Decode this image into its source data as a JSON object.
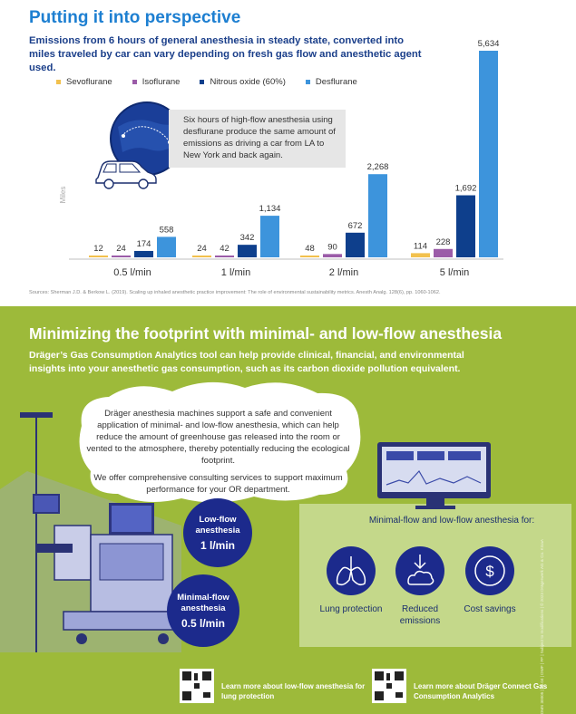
{
  "top": {
    "title": "Putting it into perspective",
    "subtitle": "Emissions from 6 hours of general anesthesia in steady state, converted into miles traveled by car can vary depending on fresh gas flow and anesthetic agent used.",
    "callout": "Six hours of high-flow anesthesia using desflurane produce the same amount of emissions as driving a car from LA to New York and back again.",
    "sources": "Sources: Sherman J.D. & Berkow L. (2019). Scaling up inhaled anesthetic practice improvement: The role of environmental sustainability metrics. Anesth Analg. 128(6), pp. 1060-1062."
  },
  "chart_data": {
    "type": "bar",
    "categories": [
      "0.5 l/min",
      "1 l/min",
      "2 l/min",
      "5 l/min"
    ],
    "series": [
      {
        "name": "Sevoflurane",
        "values": [
          12,
          24,
          48,
          114
        ],
        "color": "#f2c14e"
      },
      {
        "name": "Isoflurane",
        "values": [
          24,
          42,
          90,
          228
        ],
        "color": "#9b5ca8"
      },
      {
        "name": "Nitrous oxide (60%)",
        "values": [
          174,
          342,
          672,
          1692
        ],
        "color": "#0e3f8c"
      },
      {
        "name": "Desflurane",
        "values": [
          558,
          1134,
          2268,
          5634
        ],
        "color": "#3d94dc"
      }
    ],
    "data_labels": [
      [
        "12",
        "24",
        "174",
        "558"
      ],
      [
        "24",
        "42",
        "342",
        "1,134"
      ],
      [
        "48",
        "90",
        "672",
        "2,268"
      ],
      [
        "114",
        "228",
        "1,692",
        "5,634"
      ]
    ],
    "title": "Putting it into perspective",
    "xlabel": "",
    "ylabel": "Miles",
    "ylim": [
      0,
      5634
    ],
    "grid": false,
    "legend_position": "top"
  },
  "bottom": {
    "title": "Minimizing the footprint with minimal- and low-flow anesthesia",
    "subtitle": "Dräger’s Gas Consumption Analytics tool can help provide clinical, financial, and environmental insights into your anesthetic gas consumption, such as its carbon dioxide pollution equivalent.",
    "cloud_p1": "Dräger anesthesia machines support a safe and convenient application of minimal- and low-flow anesthesia, which can help reduce the amount of greenhouse gas released into the room or vented to the atmosphere, thereby potentially reducing the ecological footprint.",
    "cloud_p2": "We offer comprehensive consulting services to support maximum performance for your OR department.",
    "low_flow_label": "Low-flow anesthesia",
    "low_flow_value": "1 l/min",
    "minimal_flow_label": "Minimal-flow anesthesia",
    "minimal_flow_value": "0.5 l/min",
    "mlf_title": "Minimal-flow and low-flow anesthesia for:",
    "benefits": [
      {
        "label": "Lung protection",
        "icon": "lungs-icon"
      },
      {
        "label": "Reduced emissions",
        "icon": "emissions-icon"
      },
      {
        "label": "Cost savings",
        "icon": "dollar-icon"
      }
    ],
    "qr1_text": "Learn more about low-flow anesthesia for lung protection",
    "qr2_text": "Learn more about Dräger Connect Gas Consumption Analytics",
    "side_text": "DMS 30005 | 23.04 | DWF | FF | Subject to modifications | © 2023 Drägerwerk AG & Co. KGaA"
  }
}
